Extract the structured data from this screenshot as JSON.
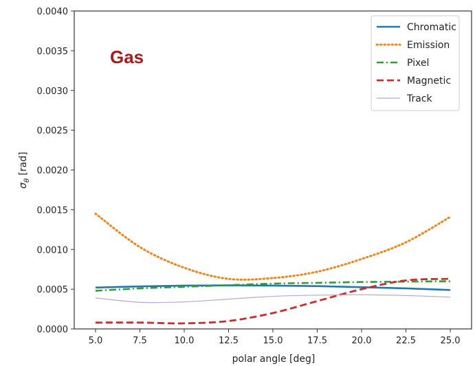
{
  "chart_data": {
    "type": "line",
    "title": "",
    "annotation": "Gas",
    "annotation_color": "#b01818",
    "xlabel": "polar angle [deg]",
    "ylabel": "σ_θ [rad]",
    "xlim": [
      3.8,
      26.2
    ],
    "ylim": [
      0,
      0.004
    ],
    "xticks": [
      5,
      7.5,
      10,
      12.5,
      15,
      17.5,
      20,
      22.5,
      25
    ],
    "xtick_labels": [
      "5.0",
      "7.5",
      "10.0",
      "12.5",
      "15.0",
      "17.5",
      "20.0",
      "22.5",
      "25.0"
    ],
    "yticks": [
      0,
      0.0005,
      0.001,
      0.0015,
      0.002,
      0.0025,
      0.003,
      0.0035,
      0.004
    ],
    "ytick_labels": [
      "0.0000",
      "0.0005",
      "0.0010",
      "0.0015",
      "0.0020",
      "0.0025",
      "0.0030",
      "0.0035",
      "0.0040"
    ],
    "grid": false,
    "legend_position": "top-right",
    "x": [
      5,
      7.5,
      10,
      12.5,
      15,
      17.5,
      20,
      22.5,
      25
    ],
    "series": [
      {
        "name": "Chromatic",
        "color": "#1f77b4",
        "style": "solid",
        "values": [
          0.00052,
          0.000535,
          0.000545,
          0.000548,
          0.000545,
          0.000538,
          0.000525,
          0.00051,
          0.00049
        ]
      },
      {
        "name": "Emission",
        "color": "#ff7f0e",
        "style": "dotted",
        "values": [
          0.00145,
          0.00103,
          0.00077,
          0.00063,
          0.00064,
          0.00072,
          0.00088,
          0.00109,
          0.00141
        ]
      },
      {
        "name": "Pixel",
        "color": "#2ca02c",
        "style": "dashdot",
        "values": [
          0.00048,
          0.00051,
          0.00053,
          0.00055,
          0.00057,
          0.00058,
          0.00059,
          0.000595,
          0.0006
        ]
      },
      {
        "name": "Magnetic",
        "color": "#d62728",
        "style": "dashed",
        "values": [
          8e-05,
          8e-05,
          7e-05,
          0.0001,
          0.0002,
          0.00035,
          0.0005,
          0.00061,
          0.00063
        ]
      },
      {
        "name": "Track",
        "color": "#b9a6d9",
        "style": "thin",
        "values": [
          0.00039,
          0.000335,
          0.00034,
          0.000375,
          0.00041,
          0.000425,
          0.00043,
          0.00042,
          0.0004
        ]
      }
    ]
  }
}
